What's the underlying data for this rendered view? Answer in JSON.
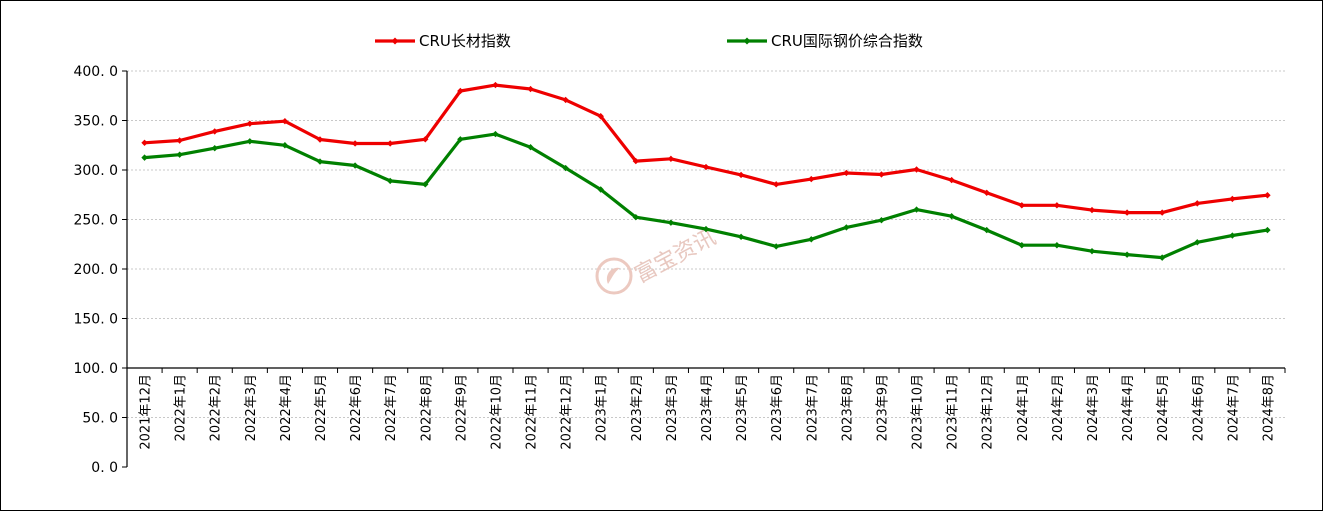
{
  "chart_data": {
    "type": "line",
    "categories": [
      "2021年12月",
      "2022年1月",
      "2022年2月",
      "2022年3月",
      "2022年4月",
      "2022年5月",
      "2022年6月",
      "2022年7月",
      "2022年8月",
      "2022年9月",
      "2022年10月",
      "2022年11月",
      "2022年12月",
      "2023年1月",
      "2023年2月",
      "2023年3月",
      "2023年4月",
      "2023年5月",
      "2023年6月",
      "2023年7月",
      "2023年8月",
      "2023年9月",
      "2023年10月",
      "2023年11月",
      "2023年12月",
      "2024年1月",
      "2024年2月",
      "2024年3月",
      "2024年4月",
      "2024年5月",
      "2024年6月",
      "2024年7月",
      "2024年8月"
    ],
    "series": [
      {
        "name": "CRU长材指数",
        "color": "#ee0000",
        "values": [
          327.5,
          329.8,
          339.0,
          346.8,
          349.3,
          330.8,
          326.8,
          326.8,
          331.0,
          379.8,
          385.8,
          381.8,
          370.8,
          354.3,
          309.0,
          311.3,
          303.0,
          295.0,
          285.5,
          290.8,
          297.0,
          295.5,
          300.5,
          289.8,
          277.0,
          264.3,
          264.3,
          259.5,
          257.0,
          257.0,
          266.3,
          270.8,
          274.5
        ]
      },
      {
        "name": "CRU国际钢价综合指数",
        "color": "#008000",
        "values": [
          312.5,
          315.5,
          322.0,
          329.0,
          325.0,
          308.5,
          304.5,
          289.0,
          285.5,
          331.0,
          336.3,
          323.0,
          302.0,
          280.3,
          252.3,
          246.8,
          240.3,
          232.5,
          222.8,
          230.0,
          242.0,
          249.3,
          260.0,
          253.3,
          239.3,
          224.0,
          224.0,
          218.0,
          214.5,
          211.5,
          227.0,
          233.8,
          239.3
        ]
      }
    ],
    "yticks": [
      "0. 0",
      "50. 0",
      "100. 0",
      "150. 0",
      "200. 0",
      "250. 0",
      "300. 0",
      "350. 0",
      "400. 0"
    ],
    "ylim": [
      0,
      400
    ],
    "grid": true,
    "legend_position": "top"
  },
  "watermark": "富宝资讯"
}
